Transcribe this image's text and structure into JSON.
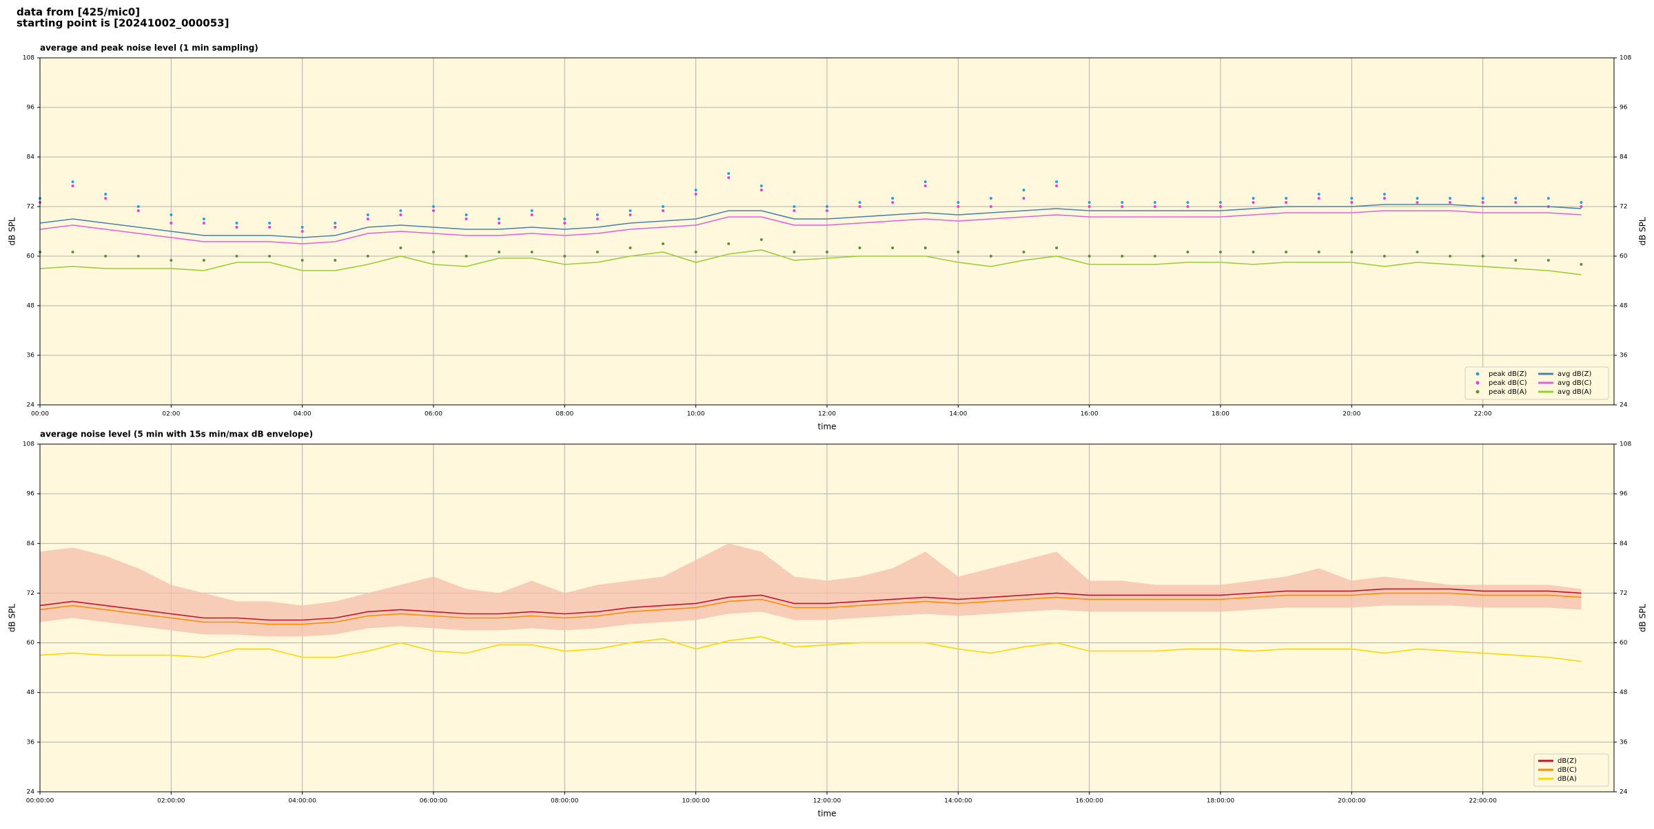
{
  "header": {
    "lines": [
      "data from [425/mic0]",
      "starting point is [20241002_000053]"
    ]
  },
  "chart_data": [
    {
      "type": "line",
      "title": "average and peak noise level (1 min sampling)",
      "x_label": "time",
      "y_label": "dB SPL",
      "xlim": [
        0,
        24
      ],
      "ylim": [
        24,
        108
      ],
      "yticks": [
        24,
        36,
        48,
        60,
        72,
        84,
        96,
        108
      ],
      "xticks": [
        {
          "value": 0,
          "label": "00:00"
        },
        {
          "value": 2,
          "label": "02:00"
        },
        {
          "value": 4,
          "label": "04:00"
        },
        {
          "value": 6,
          "label": "06:00"
        },
        {
          "value": 8,
          "label": "08:00"
        },
        {
          "value": 10,
          "label": "10:00"
        },
        {
          "value": 12,
          "label": "12:00"
        },
        {
          "value": 14,
          "label": "14:00"
        },
        {
          "value": 16,
          "label": "16:00"
        },
        {
          "value": 18,
          "label": "18:00"
        },
        {
          "value": 20,
          "label": "20:00"
        },
        {
          "value": 22,
          "label": "22:00"
        }
      ],
      "grid": true,
      "background": "#fff8dc",
      "legend": "lower right",
      "legend_columns": 2,
      "x": [
        0,
        0.5,
        1,
        1.5,
        2,
        2.5,
        3,
        3.5,
        4,
        4.5,
        5,
        5.5,
        6,
        6.5,
        7,
        7.5,
        8,
        8.5,
        9,
        9.5,
        10,
        10.5,
        11,
        11.5,
        12,
        12.5,
        13,
        13.5,
        14,
        14.5,
        15,
        15.5,
        16,
        16.5,
        17,
        17.5,
        18,
        18.5,
        19,
        19.5,
        20,
        20.5,
        21,
        21.5,
        22,
        22.5,
        23,
        23.5
      ],
      "series": [
        {
          "name": "peak dB(Z)",
          "style": "markers",
          "color": "#2b9fd9",
          "values": [
            74,
            78,
            75,
            72,
            70,
            69,
            68,
            68,
            67,
            68,
            70,
            71,
            72,
            70,
            69,
            71,
            69,
            70,
            71,
            72,
            76,
            80,
            77,
            72,
            72,
            73,
            74,
            78,
            73,
            74,
            76,
            78,
            73,
            73,
            73,
            73,
            73,
            74,
            74,
            75,
            74,
            75,
            74,
            74,
            74,
            74,
            74,
            73
          ]
        },
        {
          "name": "peak dB(C)",
          "style": "markers",
          "color": "#e040e0",
          "values": [
            73,
            77,
            74,
            71,
            68,
            68,
            67,
            67,
            66,
            67,
            69,
            70,
            71,
            69,
            68,
            70,
            68,
            69,
            70,
            71,
            75,
            79,
            76,
            71,
            71,
            72,
            73,
            77,
            72,
            72,
            74,
            77,
            72,
            72,
            72,
            72,
            72,
            73,
            73,
            74,
            73,
            74,
            73,
            73,
            73,
            73,
            72,
            72
          ]
        },
        {
          "name": "peak dB(A)",
          "style": "markers",
          "color": "#5f8f3a",
          "values": [
            61,
            61,
            60,
            60,
            59,
            59,
            60,
            60,
            59,
            59,
            60,
            62,
            61,
            60,
            61,
            61,
            60,
            61,
            62,
            63,
            61,
            63,
            64,
            61,
            61,
            62,
            62,
            62,
            61,
            60,
            61,
            62,
            60,
            60,
            60,
            61,
            61,
            61,
            61,
            61,
            61,
            60,
            61,
            60,
            60,
            59,
            59,
            58
          ]
        },
        {
          "name": "avg dB(Z)",
          "style": "line",
          "color": "#4a7fb0",
          "values": [
            68,
            69,
            68,
            67,
            66,
            65,
            65,
            65,
            64.5,
            65,
            67,
            67.5,
            67,
            66.5,
            66.5,
            67,
            66.5,
            67,
            68,
            68.5,
            69,
            71,
            71,
            69,
            69,
            69.5,
            70,
            70.5,
            70,
            70.5,
            71,
            71.5,
            71,
            71,
            71,
            71,
            71,
            71.5,
            72,
            72,
            72,
            72.5,
            72.5,
            72.5,
            72,
            72,
            72,
            71.5
          ]
        },
        {
          "name": "avg dB(C)",
          "style": "line",
          "color": "#e060e0",
          "values": [
            66.5,
            67.5,
            66.5,
            65.5,
            64.5,
            63.5,
            63.5,
            63.5,
            63,
            63.5,
            65.5,
            66,
            65.5,
            65,
            65,
            65.5,
            65,
            65.5,
            66.5,
            67,
            67.5,
            69.5,
            69.5,
            67.5,
            67.5,
            68,
            68.5,
            69,
            68.5,
            69,
            69.5,
            70,
            69.5,
            69.5,
            69.5,
            69.5,
            69.5,
            70,
            70.5,
            70.5,
            70.5,
            71,
            71,
            71,
            70.5,
            70.5,
            70.5,
            70
          ]
        },
        {
          "name": "avg dB(A)",
          "style": "line",
          "color": "#9acd32",
          "values": [
            57,
            57.5,
            57,
            57,
            57,
            56.5,
            58.5,
            58.5,
            56.5,
            56.5,
            58,
            60,
            58,
            57.5,
            59.5,
            59.5,
            58,
            58.5,
            60,
            61,
            58.5,
            60.5,
            61.5,
            59,
            59.5,
            60,
            60,
            60,
            58.5,
            57.5,
            59,
            60,
            58,
            58,
            58,
            58.5,
            58.5,
            58,
            58.5,
            58.5,
            58.5,
            57.5,
            58.5,
            58,
            57.5,
            57,
            56.5,
            55.5
          ]
        }
      ]
    },
    {
      "type": "line",
      "title": "average noise level (5 min with 15s min/max dB envelope)",
      "x_label": "time",
      "y_label": "dB SPL",
      "xlim": [
        0,
        24
      ],
      "ylim": [
        24,
        108
      ],
      "yticks": [
        24,
        36,
        48,
        60,
        72,
        84,
        96,
        108
      ],
      "xticks": [
        {
          "value": 0,
          "label": "00:00:00"
        },
        {
          "value": 2,
          "label": "02:00:00"
        },
        {
          "value": 4,
          "label": "04:00:00"
        },
        {
          "value": 6,
          "label": "06:00:00"
        },
        {
          "value": 8,
          "label": "08:00:00"
        },
        {
          "value": 10,
          "label": "10:00:00"
        },
        {
          "value": 12,
          "label": "12:00:00"
        },
        {
          "value": 14,
          "label": "14:00:00"
        },
        {
          "value": 16,
          "label": "16:00:00"
        },
        {
          "value": 18,
          "label": "18:00:00"
        },
        {
          "value": 20,
          "label": "20:00:00"
        },
        {
          "value": 22,
          "label": "22:00:00"
        }
      ],
      "grid": true,
      "background": "#fff8dc",
      "legend": "lower right",
      "legend_columns": 1,
      "x": [
        0,
        0.5,
        1,
        1.5,
        2,
        2.5,
        3,
        3.5,
        4,
        4.5,
        5,
        5.5,
        6,
        6.5,
        7,
        7.5,
        8,
        8.5,
        9,
        9.5,
        10,
        10.5,
        11,
        11.5,
        12,
        12.5,
        13,
        13.5,
        14,
        14.5,
        15,
        15.5,
        16,
        16.5,
        17,
        17.5,
        18,
        18.5,
        19,
        19.5,
        20,
        20.5,
        21,
        21.5,
        22,
        22.5,
        23,
        23.5
      ],
      "envelope": {
        "color": "#f6c2ae",
        "high": [
          82,
          83,
          81,
          78,
          74,
          72,
          70,
          70,
          69,
          70,
          72,
          74,
          76,
          73,
          72,
          75,
          72,
          74,
          75,
          76,
          80,
          84,
          82,
          76,
          75,
          76,
          78,
          82,
          76,
          78,
          80,
          82,
          75,
          75,
          74,
          74,
          74,
          75,
          76,
          78,
          75,
          76,
          75,
          74,
          74,
          74,
          74,
          73
        ],
        "low": [
          65,
          66,
          65,
          64,
          63,
          62,
          62,
          61.5,
          61.5,
          62,
          63.5,
          64,
          63.5,
          63,
          63,
          63.5,
          63,
          63.5,
          64.5,
          65,
          65.5,
          67,
          67.5,
          65.5,
          65.5,
          66,
          66.5,
          67,
          66.5,
          67,
          67.5,
          68,
          67.5,
          67.5,
          67.5,
          67.5,
          67.5,
          68,
          68.5,
          68.5,
          68.5,
          69,
          69,
          69,
          68.5,
          68.5,
          68.5,
          68
        ]
      },
      "series": [
        {
          "name": "dB(Z)",
          "style": "line",
          "color": "#c8102e",
          "values": [
            69,
            70,
            69,
            68,
            67,
            66,
            66,
            65.5,
            65.5,
            66,
            67.5,
            68,
            67.5,
            67,
            67,
            67.5,
            67,
            67.5,
            68.5,
            69,
            69.5,
            71,
            71.5,
            69.5,
            69.5,
            70,
            70.5,
            71,
            70.5,
            71,
            71.5,
            72,
            71.5,
            71.5,
            71.5,
            71.5,
            71.5,
            72,
            72.5,
            72.5,
            72.5,
            73,
            73,
            73,
            72.5,
            72.5,
            72.5,
            72
          ]
        },
        {
          "name": "dB(C)",
          "style": "line",
          "color": "#ff8c00",
          "values": [
            68,
            69,
            68,
            67,
            66,
            65,
            65,
            64.5,
            64.5,
            65,
            66.5,
            67,
            66.5,
            66,
            66,
            66.5,
            66,
            66.5,
            67.5,
            68,
            68.5,
            70,
            70.5,
            68.5,
            68.5,
            69,
            69.5,
            70,
            69.5,
            70,
            70.5,
            71,
            70.5,
            70.5,
            70.5,
            70.5,
            70.5,
            71,
            71.5,
            71.5,
            71.5,
            72,
            72,
            72,
            71.5,
            71.5,
            71.5,
            71
          ]
        },
        {
          "name": "dB(A)",
          "style": "line",
          "color": "#ffd700",
          "values": [
            57,
            57.5,
            57,
            57,
            57,
            56.5,
            58.5,
            58.5,
            56.5,
            56.5,
            58,
            60,
            58,
            57.5,
            59.5,
            59.5,
            58,
            58.5,
            60,
            61,
            58.5,
            60.5,
            61.5,
            59,
            59.5,
            60,
            60,
            60,
            58.5,
            57.5,
            59,
            60,
            58,
            58,
            58,
            58.5,
            58.5,
            58,
            58.5,
            58.5,
            58.5,
            57.5,
            58.5,
            58,
            57.5,
            57,
            56.5,
            55.5
          ]
        }
      ]
    }
  ]
}
